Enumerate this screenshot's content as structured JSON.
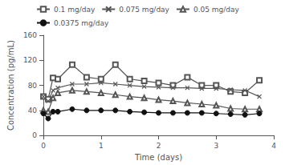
{
  "chart_data": {
    "type": "line",
    "xlabel": "Time (days)",
    "ylabel": "Concentration (pg/mL)",
    "x": [
      0,
      0.083,
      0.167,
      0.25,
      0.5,
      0.75,
      1.0,
      1.25,
      1.5,
      1.75,
      2.0,
      2.25,
      2.5,
      2.75,
      3.0,
      3.25,
      3.5,
      3.75
    ],
    "series": [
      {
        "name": "0.1 mg/day",
        "color": "#555555",
        "marker": "open-square",
        "values": [
          62,
          58,
          92,
          90,
          113,
          93,
          90,
          113,
          90,
          87,
          84,
          80,
          93,
          80,
          80,
          70,
          68,
          88
        ]
      },
      {
        "name": "0.075 mg/day",
        "color": "#555555",
        "marker": "x",
        "values": [
          62,
          55,
          72,
          76,
          82,
          82,
          84,
          82,
          80,
          78,
          77,
          76,
          76,
          75,
          75,
          73,
          72,
          62
        ]
      },
      {
        "name": "0.05 mg/day",
        "color": "#555555",
        "marker": "open-triangle",
        "values": [
          40,
          38,
          60,
          68,
          72,
          70,
          68,
          65,
          62,
          60,
          57,
          55,
          52,
          50,
          48,
          43,
          42,
          42
        ]
      },
      {
        "name": "0.0375 mg/day",
        "color": "#111111",
        "marker": "circle",
        "values": [
          35,
          27,
          38,
          38,
          42,
          40,
          40,
          40,
          38,
          37,
          36,
          36,
          36,
          36,
          35,
          34,
          33,
          35
        ]
      }
    ],
    "xlim": [
      0,
      4
    ],
    "xticks": [
      0,
      1,
      2,
      3,
      4
    ],
    "ylim": [
      0,
      160
    ],
    "yticks": [
      0,
      40,
      80,
      120,
      160
    ],
    "grid": false,
    "legend": "upper left"
  }
}
